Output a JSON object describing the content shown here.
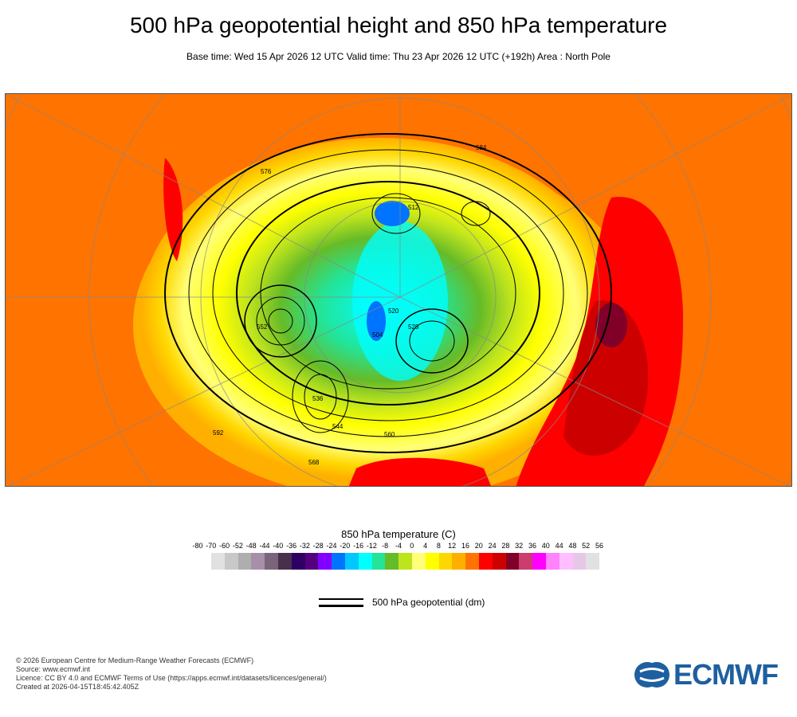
{
  "header": {
    "title": "500 hPa geopotential height and 850 hPa temperature",
    "subtitle": "Base time: Wed 15 Apr 2026 12 UTC Valid time: Thu 23 Apr 2026 12 UTC (+192h) Area : North Pole"
  },
  "map": {
    "contour_labels": [
      "576",
      "584",
      "552",
      "528",
      "520",
      "536",
      "512",
      "504",
      "560",
      "568",
      "544",
      "592"
    ]
  },
  "colorbar": {
    "title": "850 hPa temperature (C)",
    "ticks": [
      "-80",
      "-70",
      "-60",
      "-52",
      "-48",
      "-44",
      "-40",
      "-36",
      "-32",
      "-28",
      "-24",
      "-20",
      "-16",
      "-12",
      "-8",
      "-4",
      "0",
      "4",
      "8",
      "12",
      "16",
      "20",
      "24",
      "28",
      "32",
      "36",
      "40",
      "44",
      "48",
      "52",
      "56"
    ],
    "colors": [
      "#e1e1e1",
      "#c8c8c8",
      "#aeaeae",
      "#a88ea8",
      "#7a6479",
      "#47304a",
      "#2d0063",
      "#54007e",
      "#8200ff",
      "#0073ff",
      "#00c8ff",
      "#00ffff",
      "#23e497",
      "#66bb28",
      "#bee41e",
      "#ffff78",
      "#ffff00",
      "#ffd700",
      "#ffaf00",
      "#ff7300",
      "#ff0000",
      "#cd0000",
      "#800028",
      "#cd3c6e",
      "#ff00ff",
      "#ff82ff",
      "#ffbeff",
      "#e6c8e6",
      "#e1e1e1"
    ]
  },
  "legend": {
    "label": "500 hPa geopotential (dm)"
  },
  "footer": {
    "lines": [
      "© 2026 European Centre for Medium-Range Weather Forecasts (ECMWF)",
      "Source: www.ecmwf.int",
      "Licence: CC BY 4.0 and ECMWF Terms of Use (https://apps.ecmwf.int/datasets/licences/general/)",
      "Created at 2026-04-15T18:45:42.405Z"
    ]
  },
  "logo": {
    "text": "ECMWF"
  }
}
